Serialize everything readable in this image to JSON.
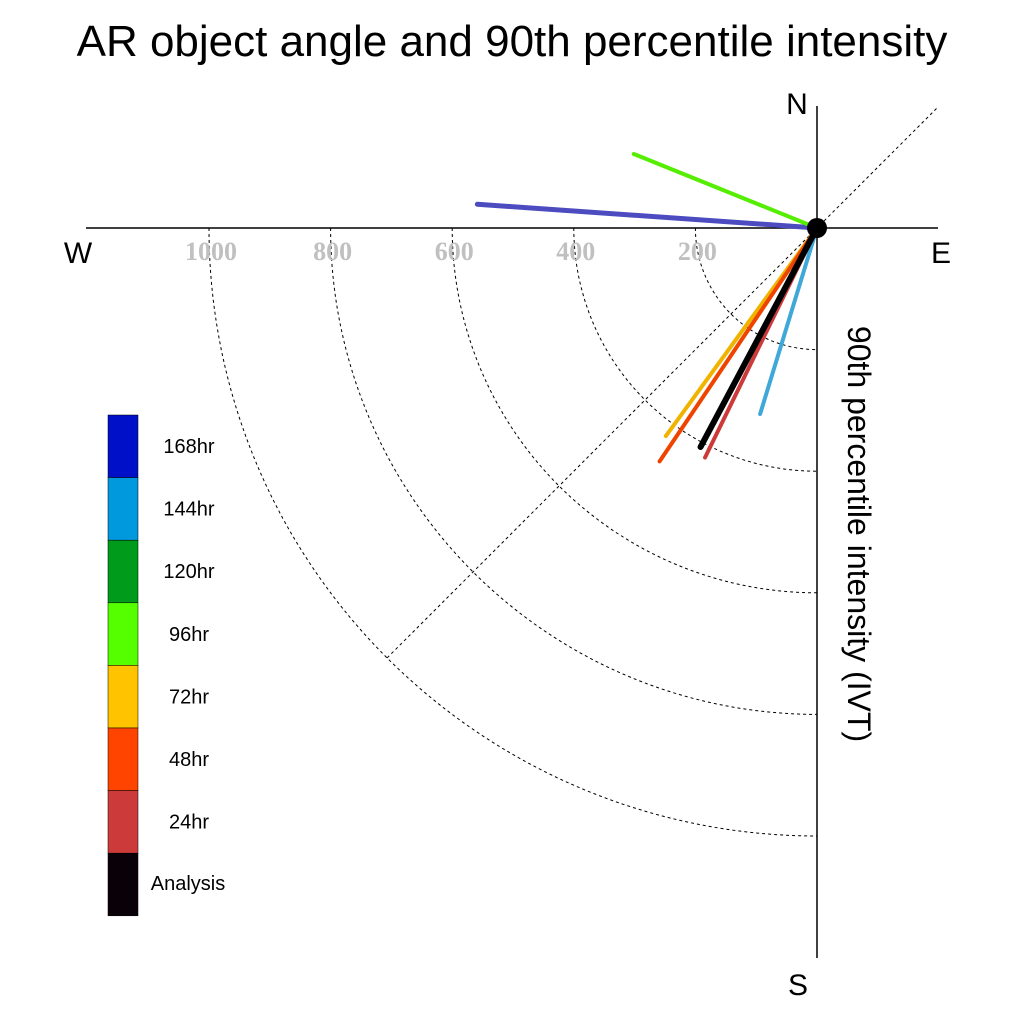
{
  "chart_data": {
    "type": "polar-vector",
    "title": "AR object angle and 90th percentile intensity",
    "radial_label": "90th percentile intensity (IVT)",
    "compass": {
      "north": "N",
      "south": "S",
      "east": "E",
      "west": "W"
    },
    "radial_ticks": [
      {
        "value": 200,
        "label": "200"
      },
      {
        "value": 400,
        "label": "400"
      },
      {
        "value": 600,
        "label": "600"
      },
      {
        "value": 800,
        "label": "800"
      },
      {
        "value": 1000,
        "label": "1000"
      }
    ],
    "rlim": [
      0,
      1000
    ],
    "grid": true,
    "legend_position": "left",
    "series": [
      {
        "name": "168hr",
        "color": "#0010c8",
        "line_color": "#4c4cc0",
        "angle_deg": 274,
        "intensity": 560,
        "width": 5
      },
      {
        "name": "144hr",
        "color": "#0099dd",
        "line_color": "#40a8d8",
        "angle_deg": 197,
        "intensity": 320,
        "width": 4
      },
      {
        "name": "120hr",
        "color": "#009b1a",
        "line_color": "#009b1a",
        "angle_deg": 0,
        "intensity": 0,
        "width": 0
      },
      {
        "name": "96hr",
        "color": "#55ff00",
        "line_color": "#55ee00",
        "angle_deg": 292,
        "intensity": 325,
        "width": 4
      },
      {
        "name": "72hr",
        "color": "#ffc300",
        "line_color": "#f0b400",
        "angle_deg": 216,
        "intensity": 423,
        "width": 4
      },
      {
        "name": "48hr",
        "color": "#ff4400",
        "line_color": "#ee4400",
        "angle_deg": 214,
        "intensity": 463,
        "width": 4
      },
      {
        "name": "24hr",
        "color": "#cc3a3a",
        "line_color": "#cc3a3a",
        "angle_deg": 206,
        "intensity": 420,
        "width": 4
      },
      {
        "name": "Analysis",
        "color": "#0a0008",
        "line_color": "#000000",
        "angle_deg": 208,
        "intensity": 408,
        "width": 6
      }
    ]
  }
}
